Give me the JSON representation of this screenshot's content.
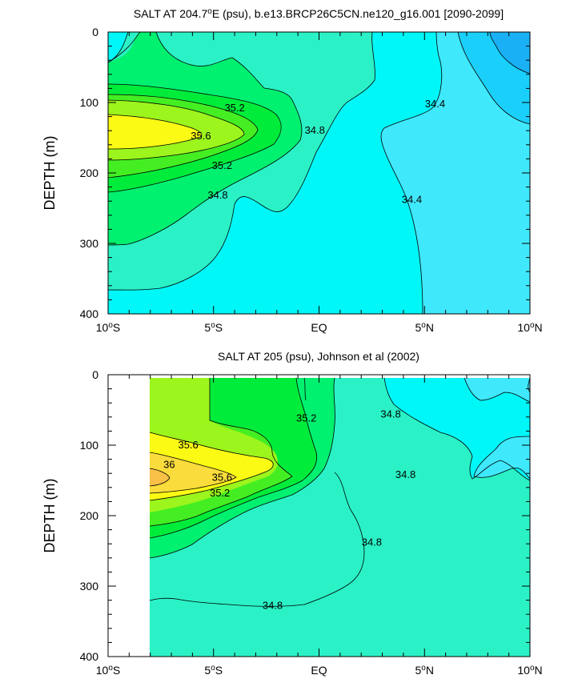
{
  "colors": {
    "s33_9": "#1a98f0",
    "s34_0": "#1ab0f5",
    "s34_2": "#1ad0fa",
    "s34_4": "#40e8fc",
    "s34_6": "#00f7f7",
    "s34_8": "#2af2c6",
    "s35_0": "#00f070",
    "s35_2": "#00ec3a",
    "s35_4": "#44ee22",
    "s35_6": "#9cf51c",
    "s35_8": "#fafa14",
    "s36_0": "#fadc3c",
    "s36_2": "#f8c046"
  },
  "chart_data": [
    {
      "type": "contour",
      "title_prefix": "SALT AT 204.7",
      "title_degree": "o",
      "title_suffix": "E (psu), b.e13.BRCP26C5CN.ne120_g16.001 [2090-2099]",
      "ylabel": "DEPTH (m)",
      "xlim": [
        -10,
        10
      ],
      "ylim": [
        0,
        400
      ],
      "y_inverted": true,
      "x_ticks": [
        {
          "value": -10,
          "label_num": "10",
          "label_unit": "S",
          "degree": "o"
        },
        {
          "value": -5,
          "label_num": "5",
          "label_unit": "S",
          "degree": "o"
        },
        {
          "value": 0,
          "label_num": "EQ",
          "label_unit": "",
          "degree": ""
        },
        {
          "value": 5,
          "label_num": "5",
          "label_unit": "N",
          "degree": "o"
        },
        {
          "value": 10,
          "label_num": "10",
          "label_unit": "N",
          "degree": "o"
        }
      ],
      "y_ticks": [
        "0",
        "100",
        "200",
        "300",
        "400"
      ],
      "contour_labels": [
        {
          "text": "35.2",
          "lat": -4.0,
          "depth": 108
        },
        {
          "text": "35.6",
          "lat": -5.6,
          "depth": 148
        },
        {
          "text": "35.2",
          "lat": -4.6,
          "depth": 190
        },
        {
          "text": "34.8",
          "lat": -4.8,
          "depth": 232
        },
        {
          "text": "34.8",
          "lat": -0.2,
          "depth": 140
        },
        {
          "text": "34.4",
          "lat": 5.5,
          "depth": 102
        },
        {
          "text": "34.4",
          "lat": 4.4,
          "depth": 238
        }
      ]
    },
    {
      "type": "contour",
      "title": "SALT AT 205 (psu), Johnson et al (2002)",
      "ylabel": "DEPTH (m)",
      "xlim": [
        -10,
        10
      ],
      "ylim": [
        0,
        400
      ],
      "y_inverted": true,
      "data_lat_range": [
        -8,
        10
      ],
      "x_ticks": [
        {
          "value": -10,
          "label_num": "10",
          "label_unit": "S",
          "degree": "o"
        },
        {
          "value": -5,
          "label_num": "5",
          "label_unit": "S",
          "degree": "o"
        },
        {
          "value": 0,
          "label_num": "EQ",
          "label_unit": "",
          "degree": ""
        },
        {
          "value": 5,
          "label_num": "5",
          "label_unit": "N",
          "degree": "o"
        },
        {
          "value": 10,
          "label_num": "10",
          "label_unit": "N",
          "degree": "o"
        }
      ],
      "y_ticks": [
        "0",
        "100",
        "200",
        "300",
        "400"
      ],
      "contour_labels": [
        {
          "text": "35.6",
          "lat": -6.2,
          "depth": 100
        },
        {
          "text": "36",
          "lat": -7.1,
          "depth": 128
        },
        {
          "text": "35.6",
          "lat": -4.6,
          "depth": 146
        },
        {
          "text": "35.2",
          "lat": -4.7,
          "depth": 168
        },
        {
          "text": "35.2",
          "lat": -0.6,
          "depth": 62
        },
        {
          "text": "34.8",
          "lat": 3.4,
          "depth": 56
        },
        {
          "text": "34.8",
          "lat": 4.1,
          "depth": 142
        },
        {
          "text": "34.8",
          "lat": 2.5,
          "depth": 238
        },
        {
          "text": "34.8",
          "lat": -2.2,
          "depth": 328
        }
      ]
    }
  ]
}
